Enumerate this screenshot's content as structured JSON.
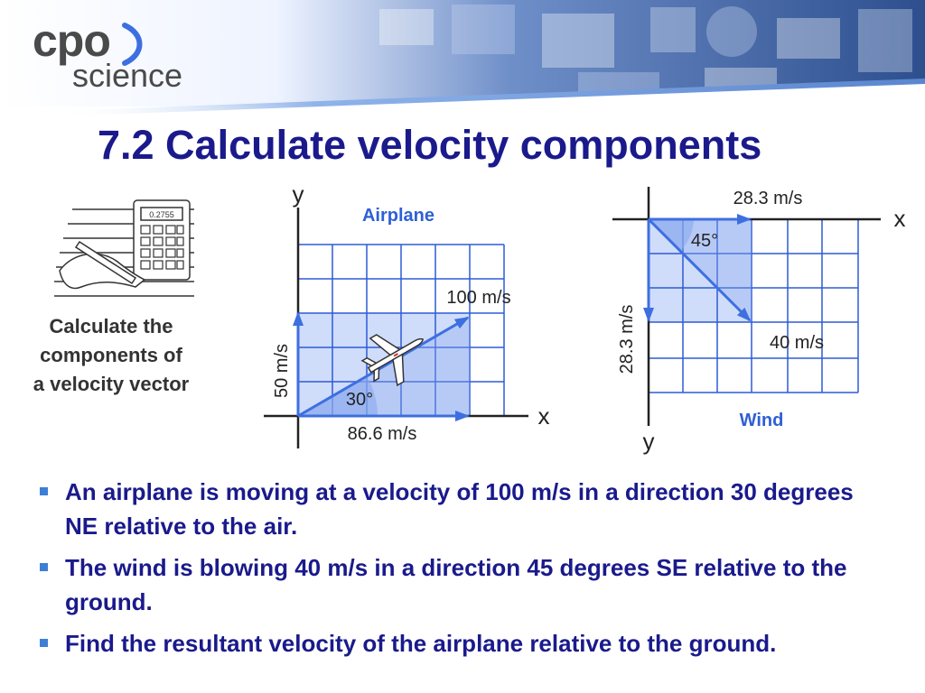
{
  "logo": {
    "primary": "cpo",
    "secondary": "science"
  },
  "title": "7.2 Calculate velocity components",
  "caption": [
    "Calculate the",
    "components of",
    "a velocity vector"
  ],
  "calculator_display": "0.2755",
  "airplane_diagram": {
    "title": "Airplane",
    "x_axis": "x",
    "y_axis": "y",
    "velocity_label": "100 m/s",
    "x_component_label": "86.6 m/s",
    "y_component_label": "50 m/s",
    "angle_label": "30°"
  },
  "wind_diagram": {
    "title": "Wind",
    "x_axis": "x",
    "y_axis": "y",
    "velocity_label": "40 m/s",
    "x_component_label": "28.3 m/s",
    "y_component_label": "28.3 m/s",
    "angle_label": "45°"
  },
  "bullets": [
    "An airplane is moving at a velocity of 100 m/s in a direction 30 degrees NE relative to the air.",
    "The wind is blowing 40 m/s in a direction 45 degrees SE relative to the ground.",
    "Find the resultant velocity of the airplane relative to the ground."
  ],
  "colors": {
    "title": "#1a1a8c",
    "arrow": "#3d6fe0",
    "grid_fill": "#cfdcfa",
    "grid_line": "#2f5bd6",
    "label_blue": "#2e5fd6"
  }
}
